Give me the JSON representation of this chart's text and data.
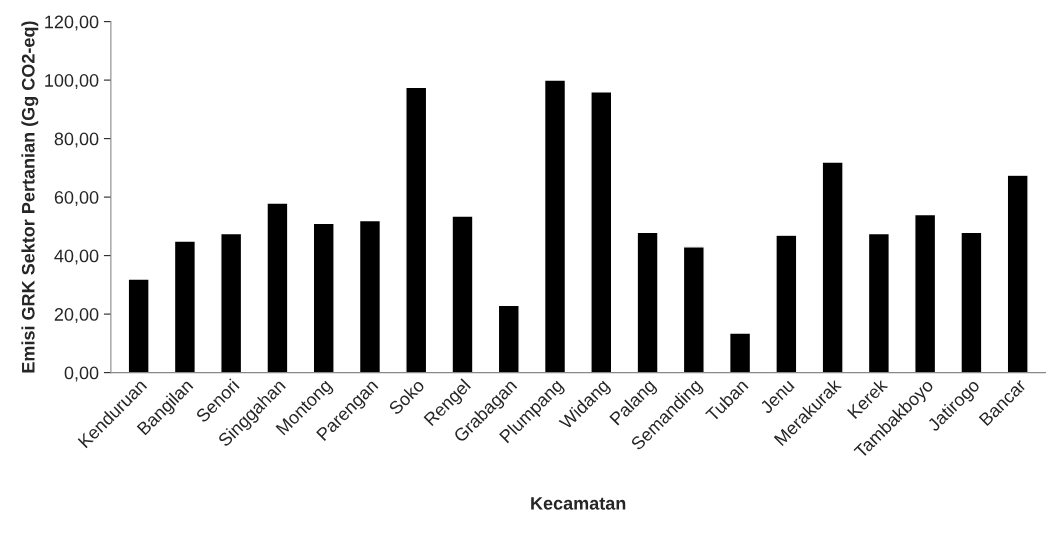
{
  "chart_data": {
    "type": "bar",
    "xlabel": "Kecamatan",
    "ylabel": "Emisi GRK Sektor Pertanian (Gg CO2-eq)",
    "categories": [
      "Kenduruan",
      "Bangilan",
      "Senori",
      "Singgahan",
      "Montong",
      "Parengan",
      "Soko",
      "Rengel",
      "Grabagan",
      "Plumpang",
      "Widang",
      "Palang",
      "Semanding",
      "Tuban",
      "Jenu",
      "Merakurak",
      "Kerek",
      "Tambakboyo",
      "Jatirogo",
      "Bancar"
    ],
    "values": [
      32,
      45,
      47.5,
      58,
      51,
      52,
      97.5,
      53.5,
      23,
      100,
      96,
      48,
      43,
      13.5,
      47,
      72,
      47.5,
      54,
      48,
      67.5
    ],
    "color": "#000000",
    "ylim": [
      0,
      120
    ],
    "yticks": [
      {
        "value": 0,
        "label": "0,00"
      },
      {
        "value": 20,
        "label": "20,00"
      },
      {
        "value": 40,
        "label": "40,00"
      },
      {
        "value": 60,
        "label": "60,00"
      },
      {
        "value": 80,
        "label": "80,00"
      },
      {
        "value": 100,
        "label": "100,00"
      },
      {
        "value": 120,
        "label": "120,00"
      }
    ],
    "grid": false
  }
}
